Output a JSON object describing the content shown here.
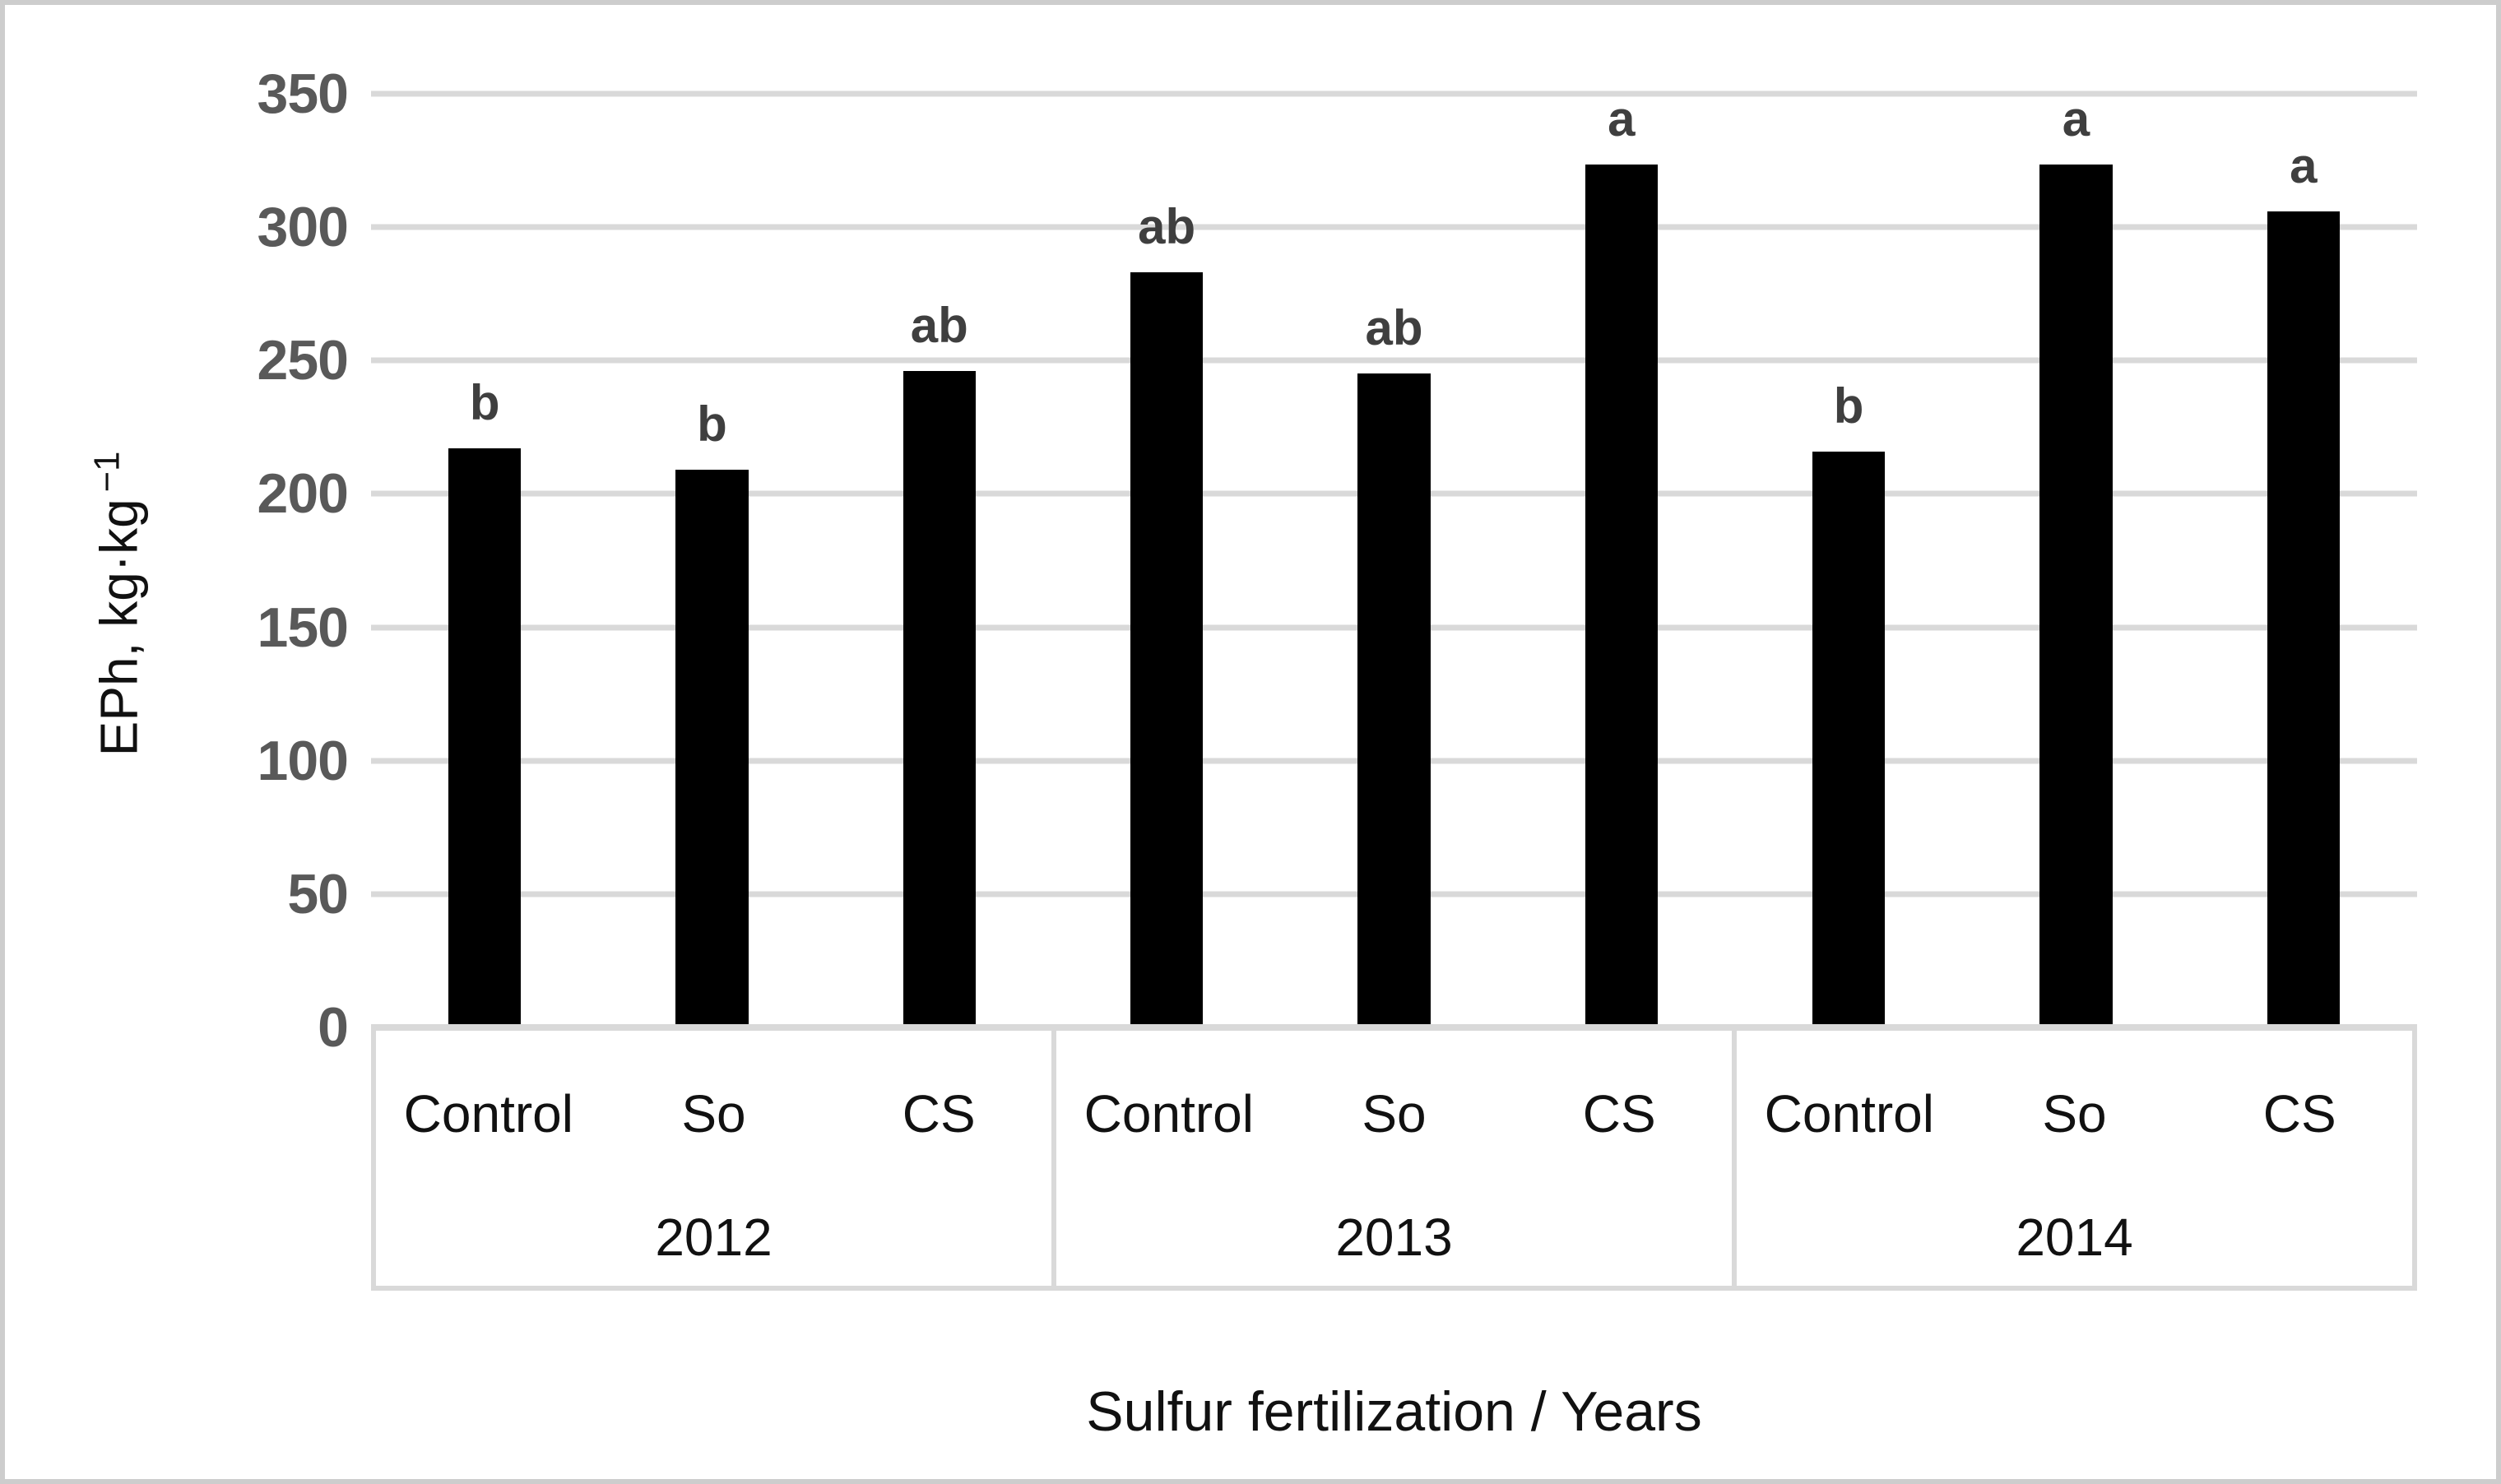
{
  "figure": {
    "y_axis_title": "EPh, kg·kg",
    "y_axis_title_superscript": "−1",
    "x_axis_title": "Sulfur fertilization / Years"
  },
  "colors": {
    "bar": "#000000",
    "gridline": "#d9d9d9",
    "tick_label": "#595959",
    "significance_letter": "#3f3f3f",
    "figure_border": "#cdcdcd",
    "label_text": "#111111"
  },
  "chart_data": {
    "type": "bar",
    "title": "",
    "xlabel": "Sulfur fertilization / Years",
    "ylabel": "EPh, kg·kg −1",
    "ylim": [
      0,
      350
    ],
    "ytick_step": 50,
    "yticks": [
      "350",
      "300",
      "250",
      "200",
      "150",
      "100",
      "50",
      "0"
    ],
    "grid": true,
    "legend_position": "none",
    "bar_color": "#000000",
    "categories": [
      "Control",
      "So",
      "CS",
      "Control",
      "So",
      "CS",
      "Control",
      "So",
      "CS"
    ],
    "values": [
      217,
      209,
      246,
      283,
      245,
      324,
      216,
      326,
      306
    ],
    "letters": [
      "b",
      "b",
      "ab",
      "ab",
      "ab",
      "a",
      "b",
      "a",
      "a"
    ],
    "years": [
      "2012",
      "2013",
      "2014"
    ],
    "groups": [
      {
        "year": "2012",
        "categories": [
          "Control",
          "So",
          "CS"
        ],
        "values": [
          217,
          209,
          246
        ],
        "letters": [
          "b",
          "b",
          "ab"
        ]
      },
      {
        "year": "2013",
        "categories": [
          "Control",
          "So",
          "CS"
        ],
        "values": [
          283,
          245,
          324
        ],
        "letters": [
          "ab",
          "ab",
          "a"
        ]
      },
      {
        "year": "2014",
        "categories": [
          "Control",
          "So",
          "CS"
        ],
        "values": [
          216,
          326,
          306
        ],
        "letters": [
          "b",
          "a",
          "a"
        ]
      }
    ]
  }
}
